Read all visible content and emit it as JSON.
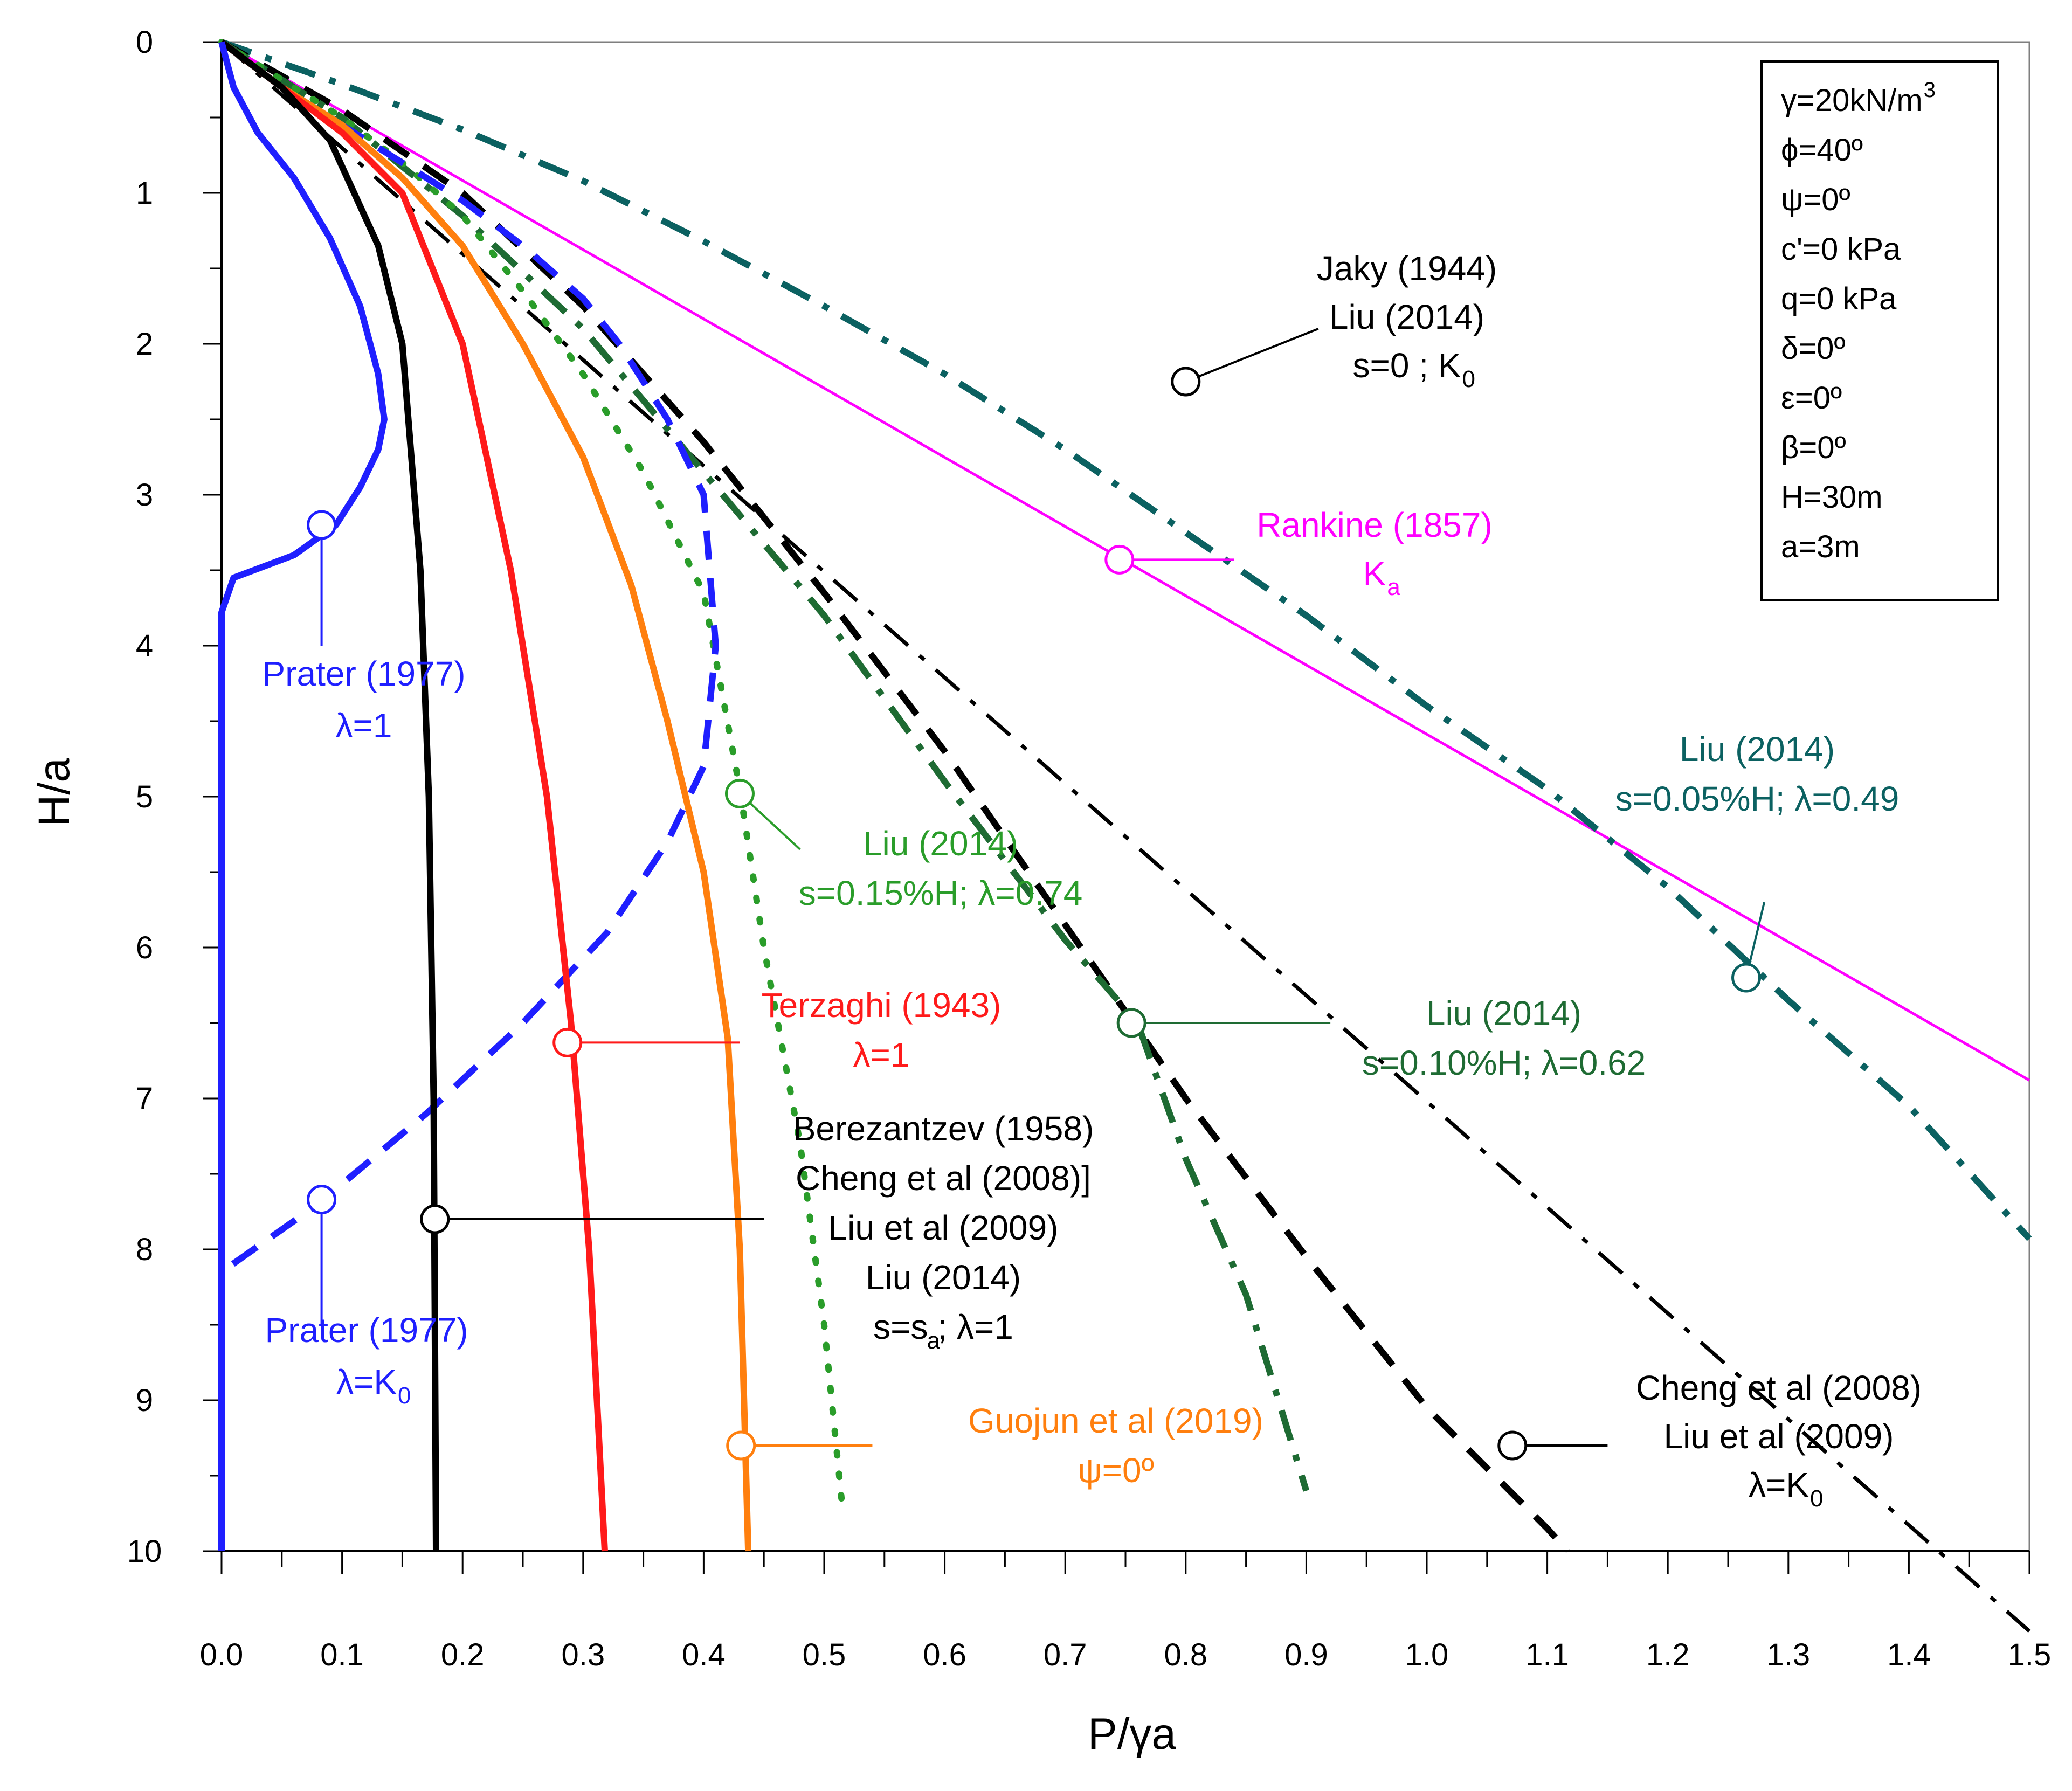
{
  "chart_data": {
    "type": "line",
    "xlabel": "P/γa",
    "ylabel": "H/a",
    "xlim": [
      0,
      1.5
    ],
    "ylim": [
      0,
      10
    ],
    "y_inverted": true,
    "x_axis_position": "bottom",
    "grid": false,
    "x_tick_labels": [
      "0.0",
      "0.1",
      "0.2",
      "0.3",
      "0.4",
      "0.5",
      "0.6",
      "0.7",
      "0.8",
      "0.9",
      "1.0",
      "1.1",
      "1.2",
      "1.3",
      "1.4",
      "1.5"
    ],
    "y_tick_labels": [
      "0",
      "1",
      "2",
      "3",
      "4",
      "5",
      "6",
      "7",
      "8",
      "9",
      "10"
    ],
    "params_box": {
      "placement": "top-right",
      "lines": [
        {
          "text": "γ=20kN/m",
          "sup": "3"
        },
        {
          "text": "ϕ=40º"
        },
        {
          "text": "ψ=0º"
        },
        {
          "text": "c'=0 kPa"
        },
        {
          "text": "q=0 kPa"
        },
        {
          "text": "δ=0º"
        },
        {
          "text": "ε=0º"
        },
        {
          "text": "β=0º"
        },
        {
          "text": "H=30m"
        },
        {
          "text": "a=3m"
        }
      ]
    },
    "series": [
      {
        "color": "#000000",
        "style": "dash-dot",
        "width": 7,
        "x": [
          0,
          1.5
        ],
        "y": [
          0,
          10.53
        ]
      },
      {
        "color": "#ff00ff",
        "style": "solid",
        "width": 5,
        "x": [
          0,
          1.5
        ],
        "y": [
          0,
          6.88
        ]
      },
      {
        "color": "#0b6161",
        "style": "dash-dot",
        "width": 12,
        "x": [
          0,
          0.1,
          0.2,
          0.3,
          0.4,
          0.5,
          0.6,
          0.7,
          0.8,
          0.9,
          1.0,
          1.1,
          1.2,
          1.3,
          1.4,
          1.5
        ],
        "y": [
          0,
          0.28,
          0.58,
          0.92,
          1.32,
          1.75,
          2.2,
          2.7,
          3.25,
          3.8,
          4.4,
          4.95,
          5.6,
          6.35,
          7.05,
          7.93
        ]
      },
      {
        "color": "#000000",
        "style": "dash",
        "width": 12,
        "x": [
          0,
          0.1,
          0.2,
          0.3,
          0.4,
          0.5,
          0.6,
          0.7,
          0.8,
          0.9,
          1.0,
          1.05,
          1.1,
          1.117
        ],
        "y": [
          0,
          0.45,
          1.0,
          1.75,
          2.65,
          3.65,
          4.7,
          5.85,
          7.0,
          8.05,
          9.05,
          9.45,
          9.85,
          10.0
        ]
      },
      {
        "color": "#1e6b33",
        "style": "dash-dot",
        "width": 12,
        "x": [
          0,
          0.1,
          0.2,
          0.3,
          0.4,
          0.5,
          0.6,
          0.7,
          0.76,
          0.8,
          0.85,
          0.9
        ],
        "y": [
          0,
          0.5,
          1.15,
          1.9,
          2.85,
          3.8,
          4.9,
          5.95,
          6.5,
          7.4,
          8.3,
          9.6
        ]
      },
      {
        "color": "#2a9d2a",
        "style": "dots",
        "width": 12,
        "x": [
          0,
          0.05,
          0.1,
          0.15,
          0.2,
          0.25,
          0.3,
          0.35,
          0.4,
          0.43,
          0.45,
          0.48,
          0.5,
          0.515
        ],
        "y": [
          0,
          0.25,
          0.5,
          0.8,
          1.15,
          1.65,
          2.2,
          2.85,
          3.65,
          4.95,
          6.0,
          7.3,
          8.5,
          9.7
        ]
      },
      {
        "color": "#1f1fff",
        "style": "dash",
        "width": 12,
        "x": [
          0,
          0.05,
          0.1,
          0.15,
          0.2,
          0.25,
          0.3,
          0.33,
          0.37,
          0.4,
          0.41,
          0.4,
          0.37,
          0.32,
          0.25,
          0.17,
          0.08,
          0.0
        ],
        "y": [
          0,
          0.3,
          0.55,
          0.8,
          1.05,
          1.35,
          1.7,
          2.0,
          2.5,
          3.0,
          4.0,
          4.8,
          5.3,
          5.9,
          6.5,
          7.1,
          7.7,
          8.15
        ]
      },
      {
        "color": "#ff7f0e",
        "style": "solid",
        "width": 12,
        "x": [
          0,
          0.05,
          0.1,
          0.15,
          0.2,
          0.25,
          0.3,
          0.34,
          0.37,
          0.4,
          0.42,
          0.43,
          0.437
        ],
        "y": [
          0,
          0.3,
          0.55,
          0.9,
          1.35,
          2.0,
          2.75,
          3.6,
          4.5,
          5.5,
          6.6,
          8.0,
          10.0
        ]
      },
      {
        "color": "#ff1a1a",
        "style": "solid",
        "width": 12,
        "x": [
          0,
          0.05,
          0.1,
          0.15,
          0.2,
          0.24,
          0.27,
          0.29,
          0.305,
          0.318
        ],
        "y": [
          0,
          0.3,
          0.6,
          1.0,
          2.0,
          3.5,
          5.0,
          6.5,
          8.0,
          10.0
        ]
      },
      {
        "color": "#000000",
        "style": "solid",
        "width": 12,
        "x": [
          0,
          0.05,
          0.09,
          0.13,
          0.15,
          0.165,
          0.172,
          0.176,
          0.178
        ],
        "y": [
          0,
          0.3,
          0.65,
          1.35,
          2.0,
          3.5,
          5.0,
          7.0,
          10.0
        ]
      },
      {
        "color": "#1f1fff",
        "style": "solid",
        "width": 12,
        "x": [
          0,
          0.01,
          0.03,
          0.06,
          0.09,
          0.115,
          0.13,
          0.135,
          0.13,
          0.115,
          0.095,
          0.06,
          0.01,
          0.0,
          0.0
        ],
        "y": [
          0,
          0.3,
          0.6,
          0.9,
          1.3,
          1.75,
          2.2,
          2.5,
          2.7,
          2.95,
          3.2,
          3.4,
          3.55,
          3.78,
          10.0
        ]
      }
    ],
    "annotations": [
      {
        "lines": [
          "Jaky (1944)",
          "Liu (2014)",
          "s=0 ; K"
        ],
        "sub": "0",
        "color": "#000000",
        "marker": [
          0.8,
          2.25
        ],
        "leader": [
          0.91,
          1.9
        ]
      },
      {
        "lines": [
          "Rankine (1857)",
          "K"
        ],
        "sub": "a",
        "color": "#ff00ff",
        "marker": [
          0.745,
          3.43
        ],
        "leader": [
          0.84,
          3.43
        ]
      },
      {
        "lines": [
          "Liu (2014)",
          "s=0.05%H; λ=0.49"
        ],
        "color": "#0b6161",
        "marker": [
          1.265,
          6.2
        ],
        "leader": [
          1.28,
          5.7
        ]
      },
      {
        "lines": [
          "Liu (2014)",
          "s=0.15%H; λ=0.74"
        ],
        "color": "#2a9d2a",
        "marker": [
          0.43,
          4.98
        ],
        "leader": [
          0.48,
          5.35
        ]
      },
      {
        "lines": [
          "Liu (2014)",
          "s=0.10%H; λ=0.62"
        ],
        "color": "#1e6b33",
        "marker": [
          0.755,
          6.5
        ],
        "leader": [
          0.92,
          6.5
        ]
      },
      {
        "lines": [
          "Terzaghi (1943)",
          "λ=1"
        ],
        "color": "#ff1a1a",
        "marker": [
          0.287,
          6.63
        ],
        "leader": [
          0.43,
          6.63
        ]
      },
      {
        "lines": [
          "Berezantzev (1958)",
          "Cheng et al (2008)]",
          "Liu et al (2009)",
          "Liu (2014)",
          "s=s ; λ=1"
        ],
        "sub": "a",
        "color": "#000000",
        "marker": [
          0.177,
          7.8
        ],
        "leader": [
          0.45,
          7.8
        ]
      },
      {
        "lines": [
          "Guojun et al (2019)",
          "ψ=0º"
        ],
        "color": "#ff7f0e",
        "marker": [
          0.431,
          9.3
        ],
        "leader": [
          0.54,
          9.3
        ]
      },
      {
        "lines": [
          "Cheng et al (2008)",
          "Liu et al (2009)",
          "λ=K"
        ],
        "sub": "0",
        "color": "#000000",
        "marker": [
          1.071,
          9.3
        ],
        "leader": [
          1.15,
          9.3
        ]
      },
      {
        "lines": [
          "Prater (1977)",
          "λ=1"
        ],
        "color": "#1f1fff",
        "marker": [
          0.083,
          3.2
        ],
        "leader": [
          0.083,
          4.0
        ]
      },
      {
        "lines": [
          "Prater (1977)",
          "λ=K"
        ],
        "sub": "0",
        "color": "#1f1fff",
        "marker": [
          0.083,
          7.67
        ],
        "leader": [
          0.083,
          8.5
        ]
      }
    ]
  }
}
